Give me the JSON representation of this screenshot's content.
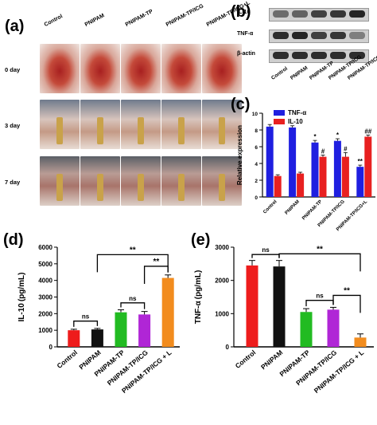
{
  "panels": {
    "a": "(a)",
    "b": "(b)",
    "c": "(c)",
    "d": "(d)",
    "e": "(e)"
  },
  "groups": [
    "Control",
    "PNIPAM",
    "PNIPAM-TP",
    "PNIPAM-TP/ICG",
    "PNIPAM-TP/ICG + L"
  ],
  "photos": {
    "column_labels": [
      "Control",
      "PNIPAM",
      "PNIPAM-TP",
      "PNIPAM-TP/ICG",
      "PNIPAM-TP/ICG+L"
    ],
    "row_labels": [
      "0 day",
      "3 day",
      "7 day"
    ]
  },
  "blot": {
    "row_labels": [
      "IL-10",
      "TNF-α",
      "β-actin"
    ],
    "lane_labels": [
      "Control",
      "PNIPAM",
      "PNIPAM-TP",
      "PNIPAM-TP/ICG",
      "PNIPAM-TP/ICG+L"
    ]
  },
  "colors": {
    "tnf": "#1f1fe0",
    "il10": "#e82020",
    "control": "#ee1c1c",
    "pnipam": "#111111",
    "tp": "#22bb22",
    "tp_icg": "#b026d6",
    "tp_icg_l": "#f28c1e"
  },
  "chart_data": [
    {
      "id": "c",
      "type": "bar",
      "ylabel": "Relative expression",
      "ylim": [
        0,
        10
      ],
      "yticks": [
        "0",
        "2",
        "4",
        "6",
        "8",
        "10"
      ],
      "categories": [
        "Control",
        "PNIPAM",
        "PNIPAM-TP",
        "PNIPAM-TP/ICG",
        "PNIPAM-TP/ICG+L"
      ],
      "legend": {
        "position": "top-left"
      },
      "series": [
        {
          "name": "TNF-α",
          "values": [
            8.4,
            8.3,
            6.5,
            6.7,
            3.6
          ],
          "errors": [
            0.25,
            0.2,
            0.25,
            0.25,
            0.2
          ],
          "annotations": [
            "",
            "",
            "*",
            "*",
            "**"
          ]
        },
        {
          "name": "IL-10",
          "values": [
            2.5,
            2.8,
            4.8,
            4.8,
            7.2
          ],
          "errors": [
            0.15,
            0.15,
            0.2,
            0.5,
            0.2
          ],
          "annotations": [
            "",
            "",
            "#",
            "#",
            "##"
          ]
        }
      ]
    },
    {
      "id": "d",
      "type": "bar",
      "ylabel": "IL-10 (pg/mL)",
      "ylim": [
        0,
        6000
      ],
      "yticks": [
        "0",
        "1000",
        "2000",
        "3000",
        "4000",
        "5000",
        "6000"
      ],
      "categories": [
        "Control",
        "PNIPAM",
        "PNIPAM-TP",
        "PNIPAM-TP/ICG",
        "PNIPAM-TP/ICG + L"
      ],
      "values": [
        1000,
        1050,
        2080,
        1950,
        4150
      ],
      "errors": [
        60,
        60,
        150,
        180,
        180
      ],
      "significance": [
        {
          "label": "ns",
          "from": 0,
          "to": 1,
          "level": 1550
        },
        {
          "label": "ns",
          "from": 2,
          "to": 3,
          "level": 2650,
          "join_to": 4
        },
        {
          "label": "**",
          "from": 3,
          "to": 4,
          "level": 4850
        },
        {
          "label": "**",
          "from": 1,
          "to": 4,
          "level": 5550
        }
      ]
    },
    {
      "id": "e",
      "type": "bar",
      "ylabel": "TNF-α (pg/mL)",
      "ylim": [
        0,
        3000
      ],
      "yticks": [
        "0",
        "1000",
        "2000",
        "3000"
      ],
      "categories": [
        "Control",
        "PNIPAM",
        "PNIPAM-TP",
        "PNIPAM-TP/ICG",
        "PNIPAM-TP/ICG + L"
      ],
      "values": [
        2450,
        2420,
        1050,
        1120,
        280
      ],
      "errors": [
        150,
        180,
        100,
        70,
        110
      ],
      "significance": [
        {
          "label": "ns",
          "from": 0,
          "to": 1,
          "level": 2780
        },
        {
          "label": "**",
          "from": 1,
          "to": 4,
          "level": 2800
        },
        {
          "label": "ns",
          "from": 2,
          "to": 3,
          "level": 1400,
          "join_to": 4
        },
        {
          "label": "**",
          "from": 3,
          "to": 4,
          "level": 1550
        }
      ]
    }
  ]
}
